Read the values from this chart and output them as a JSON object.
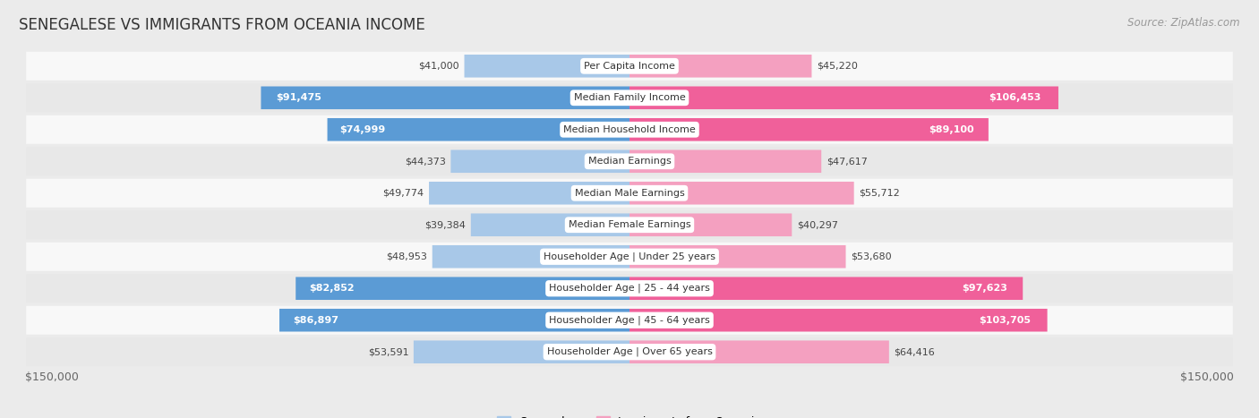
{
  "title": "SENEGALESE VS IMMIGRANTS FROM OCEANIA INCOME",
  "source": "Source: ZipAtlas.com",
  "categories": [
    "Per Capita Income",
    "Median Family Income",
    "Median Household Income",
    "Median Earnings",
    "Median Male Earnings",
    "Median Female Earnings",
    "Householder Age | Under 25 years",
    "Householder Age | 25 - 44 years",
    "Householder Age | 45 - 64 years",
    "Householder Age | Over 65 years"
  ],
  "senegalese_values": [
    41000,
    91475,
    74999,
    44373,
    49774,
    39384,
    48953,
    82852,
    86897,
    53591
  ],
  "oceania_values": [
    45220,
    106453,
    89100,
    47617,
    55712,
    40297,
    53680,
    97623,
    103705,
    64416
  ],
  "senegalese_labels": [
    "$41,000",
    "$91,475",
    "$74,999",
    "$44,373",
    "$49,774",
    "$39,384",
    "$48,953",
    "$82,852",
    "$86,897",
    "$53,591"
  ],
  "oceania_labels": [
    "$45,220",
    "$106,453",
    "$89,100",
    "$47,617",
    "$55,712",
    "$40,297",
    "$53,680",
    "$97,623",
    "$103,705",
    "$64,416"
  ],
  "max_value": 150000,
  "senegalese_color_light": "#a8c8e8",
  "senegalese_color_dark": "#5b9bd5",
  "oceania_color_light": "#f4a0c0",
  "oceania_color_dark": "#f0609a",
  "bg_color": "#ebebeb",
  "row_bg_light": "#f8f8f8",
  "row_bg_dark": "#e8e8e8",
  "legend_senegalese": "Senegalese",
  "legend_oceania": "Immigrants from Oceania",
  "dark_threshold": 70000,
  "axis_label": "$150,000"
}
